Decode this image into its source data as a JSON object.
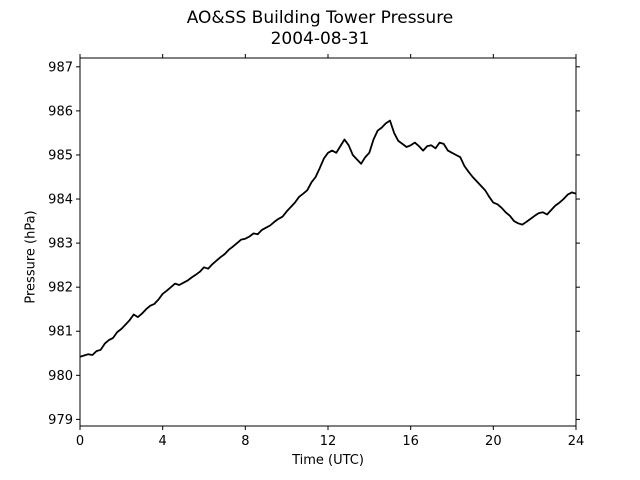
{
  "chart_data": {
    "type": "line",
    "title": "AO&SS Building Tower Pressure",
    "subtitle": "2004-08-31",
    "xlabel": "Time (UTC)",
    "ylabel": "Pressure (hPa)",
    "xlim": [
      0,
      24
    ],
    "ylim": [
      978.85,
      987.2
    ],
    "xticks": [
      0,
      4,
      8,
      12,
      16,
      20,
      24
    ],
    "yticks": [
      979,
      980,
      981,
      982,
      983,
      984,
      985,
      986,
      987
    ],
    "grid": false,
    "series": [
      {
        "color": "#000000",
        "x": [
          0.0,
          0.2,
          0.4,
          0.6,
          0.8,
          1.0,
          1.2,
          1.4,
          1.6,
          1.8,
          2.0,
          2.2,
          2.4,
          2.6,
          2.8,
          3.0,
          3.2,
          3.4,
          3.6,
          3.8,
          4.0,
          4.2,
          4.4,
          4.6,
          4.8,
          5.0,
          5.2,
          5.4,
          5.6,
          5.8,
          6.0,
          6.2,
          6.4,
          6.6,
          6.8,
          7.0,
          7.2,
          7.4,
          7.6,
          7.8,
          8.0,
          8.2,
          8.4,
          8.6,
          8.8,
          9.0,
          9.2,
          9.4,
          9.6,
          9.8,
          10.0,
          10.2,
          10.4,
          10.6,
          10.8,
          11.0,
          11.2,
          11.4,
          11.6,
          11.8,
          12.0,
          12.2,
          12.4,
          12.6,
          12.8,
          13.0,
          13.2,
          13.4,
          13.6,
          13.8,
          14.0,
          14.2,
          14.4,
          14.6,
          14.8,
          15.0,
          15.2,
          15.4,
          15.6,
          15.8,
          16.0,
          16.2,
          16.4,
          16.6,
          16.8,
          17.0,
          17.2,
          17.4,
          17.6,
          17.8,
          18.0,
          18.2,
          18.4,
          18.6,
          18.8,
          19.0,
          19.2,
          19.4,
          19.6,
          19.8,
          20.0,
          20.2,
          20.4,
          20.6,
          20.8,
          21.0,
          21.2,
          21.4,
          21.6,
          21.8,
          22.0,
          22.2,
          22.4,
          22.6,
          22.8,
          23.0,
          23.2,
          23.4,
          23.6,
          23.8,
          24.0
        ],
        "y": [
          980.42,
          980.45,
          980.48,
          980.46,
          980.55,
          980.58,
          980.72,
          980.8,
          980.85,
          980.98,
          981.05,
          981.15,
          981.25,
          981.38,
          981.32,
          981.4,
          981.5,
          981.58,
          981.62,
          981.72,
          981.85,
          981.92,
          982.0,
          982.08,
          982.05,
          982.1,
          982.15,
          982.22,
          982.28,
          982.35,
          982.45,
          982.42,
          982.52,
          982.6,
          982.68,
          982.75,
          982.85,
          982.92,
          983.0,
          983.08,
          983.1,
          983.15,
          983.22,
          983.2,
          983.3,
          983.35,
          983.4,
          983.48,
          983.55,
          983.6,
          983.72,
          983.82,
          983.92,
          984.05,
          984.12,
          984.2,
          984.38,
          984.5,
          984.7,
          984.92,
          985.05,
          985.1,
          985.05,
          985.2,
          985.35,
          985.22,
          985.0,
          984.9,
          984.8,
          984.95,
          985.05,
          985.35,
          985.55,
          985.62,
          985.72,
          985.78,
          985.5,
          985.32,
          985.25,
          985.18,
          985.22,
          985.28,
          985.2,
          985.1,
          985.2,
          985.22,
          985.15,
          985.28,
          985.25,
          985.1,
          985.05,
          985.0,
          984.95,
          984.75,
          984.62,
          984.5,
          984.4,
          984.3,
          984.2,
          984.05,
          983.92,
          983.88,
          983.8,
          983.7,
          983.62,
          983.5,
          983.45,
          983.42,
          983.48,
          983.55,
          983.62,
          983.68,
          983.7,
          983.65,
          983.75,
          983.85,
          983.92,
          984.0,
          984.1,
          984.15,
          984.12
        ]
      }
    ]
  }
}
